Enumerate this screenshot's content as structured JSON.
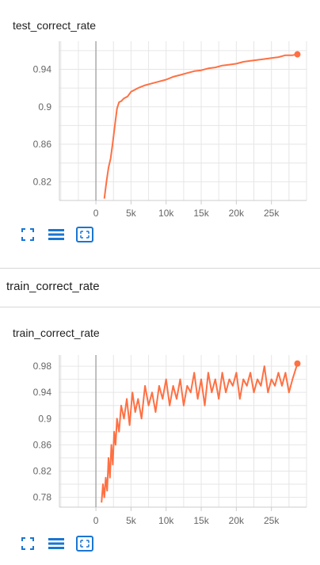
{
  "accent_color": "#ff7043",
  "icon_color": "#1976d2",
  "section": {
    "title": "train_correct_rate"
  },
  "charts": [
    {
      "title": "test_correct_rate",
      "toolbar": [
        "fit-domain-icon",
        "toggle-log-scale-icon",
        "fit-to-data-icon"
      ]
    },
    {
      "title": "train_correct_rate",
      "toolbar": [
        "fit-domain-icon",
        "toggle-log-scale-icon",
        "fit-to-data-icon"
      ]
    }
  ],
  "chart_data": [
    {
      "type": "line",
      "title": "test_correct_rate",
      "xlabel": "",
      "ylabel": "",
      "xlim": [
        -5200,
        30000
      ],
      "ylim": [
        0.8,
        0.97
      ],
      "x_ticks": [
        0,
        5000,
        10000,
        15000,
        20000,
        25000
      ],
      "x_tick_labels": [
        "0",
        "5k",
        "10k",
        "15k",
        "20k",
        "25k"
      ],
      "y_ticks": [
        0.82,
        0.86,
        0.9,
        0.94
      ],
      "y_tick_labels": [
        "0.82",
        "0.86",
        "0.9",
        "0.94"
      ],
      "grid": true,
      "series": [
        {
          "color": "#ff7043",
          "x": [
            1200,
            1500,
            1800,
            2100,
            2400,
            2700,
            3000,
            3300,
            3600,
            4000,
            4500,
            5000,
            5500,
            6000,
            7000,
            8000,
            9000,
            10000,
            11000,
            12000,
            13000,
            14000,
            15000,
            16000,
            17000,
            18000,
            19000,
            20000,
            21000,
            22000,
            23000,
            24000,
            25000,
            26000,
            27000,
            28000,
            28700
          ],
          "y": [
            0.802,
            0.82,
            0.835,
            0.845,
            0.862,
            0.88,
            0.898,
            0.905,
            0.906,
            0.909,
            0.911,
            0.916,
            0.918,
            0.92,
            0.923,
            0.925,
            0.927,
            0.929,
            0.932,
            0.934,
            0.936,
            0.938,
            0.939,
            0.941,
            0.942,
            0.944,
            0.945,
            0.946,
            0.948,
            0.949,
            0.95,
            0.951,
            0.952,
            0.953,
            0.955,
            0.955,
            0.956
          ]
        }
      ]
    },
    {
      "type": "line",
      "title": "train_correct_rate",
      "xlabel": "",
      "ylabel": "",
      "xlim": [
        -5200,
        30000
      ],
      "ylim": [
        0.765,
        0.997
      ],
      "x_ticks": [
        0,
        5000,
        10000,
        15000,
        20000,
        25000
      ],
      "x_tick_labels": [
        "0",
        "5k",
        "10k",
        "15k",
        "20k",
        "25k"
      ],
      "y_ticks": [
        0.78,
        0.82,
        0.86,
        0.9,
        0.94,
        0.98
      ],
      "y_tick_labels": [
        "0.78",
        "0.82",
        "0.86",
        "0.9",
        "0.94",
        "0.98"
      ],
      "grid": true,
      "series": [
        {
          "color": "#ff7043",
          "x": [
            800,
            1000,
            1200,
            1400,
            1600,
            1800,
            2000,
            2200,
            2400,
            2600,
            2800,
            3000,
            3300,
            3600,
            4000,
            4400,
            4800,
            5200,
            5600,
            6000,
            6500,
            7000,
            7500,
            8000,
            8500,
            9000,
            9500,
            10000,
            10500,
            11000,
            11500,
            12000,
            12500,
            13000,
            13500,
            14000,
            14500,
            15000,
            15500,
            16000,
            16500,
            17000,
            17500,
            18000,
            18500,
            19000,
            19500,
            20000,
            20500,
            21000,
            21500,
            22000,
            22500,
            23000,
            23500,
            24000,
            24500,
            25000,
            25500,
            26000,
            26500,
            27000,
            27500,
            28000,
            28300,
            28700
          ],
          "y": [
            0.772,
            0.8,
            0.78,
            0.81,
            0.79,
            0.84,
            0.81,
            0.86,
            0.83,
            0.88,
            0.86,
            0.9,
            0.88,
            0.92,
            0.9,
            0.93,
            0.89,
            0.94,
            0.91,
            0.93,
            0.9,
            0.95,
            0.92,
            0.94,
            0.91,
            0.95,
            0.93,
            0.96,
            0.92,
            0.95,
            0.93,
            0.96,
            0.92,
            0.95,
            0.94,
            0.97,
            0.93,
            0.96,
            0.92,
            0.97,
            0.94,
            0.96,
            0.93,
            0.97,
            0.94,
            0.96,
            0.95,
            0.97,
            0.93,
            0.96,
            0.95,
            0.97,
            0.94,
            0.96,
            0.95,
            0.98,
            0.94,
            0.96,
            0.95,
            0.97,
            0.95,
            0.97,
            0.94,
            0.96,
            0.97,
            0.984
          ]
        }
      ]
    }
  ]
}
